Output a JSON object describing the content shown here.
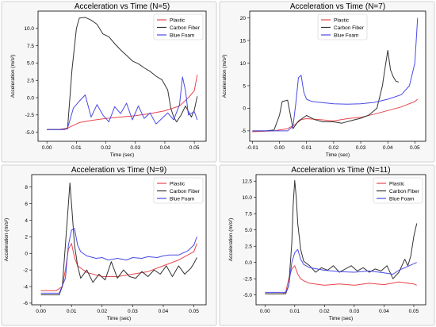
{
  "colors": {
    "plastic": "#e8464c",
    "carbon": "#333333",
    "foam": "#4a4ae6"
  },
  "chart_data": [
    {
      "type": "line",
      "title": "Acceleration vs Time (N=5)",
      "xlabel": "Time (sec)",
      "ylabel": "Acceleration (m/s²)",
      "xlim": [
        -0.003,
        0.054
      ],
      "ylim": [
        -6.3,
        12.5
      ],
      "xticks": [
        0.0,
        0.01,
        0.02,
        0.03,
        0.04,
        0.05
      ],
      "xtick_labels": [
        "0.00",
        "0.01",
        "0.02",
        "0.03",
        "0.04",
        "0.05"
      ],
      "yticks": [
        -5.0,
        -2.5,
        0.0,
        2.5,
        5.0,
        7.5,
        10.0
      ],
      "ytick_labels": [
        "-5.0",
        "-2.5",
        "0.0",
        "2.5",
        "5.0",
        "7.5",
        "10.0"
      ],
      "legend": "top-right",
      "grid": false,
      "series": [
        {
          "name": "Plastic",
          "color_key": "plastic",
          "x": [
            0,
            0.004,
            0.007,
            0.009,
            0.011,
            0.015,
            0.02,
            0.025,
            0.03,
            0.035,
            0.04,
            0.045,
            0.048,
            0.05,
            0.051
          ],
          "y": [
            -4.6,
            -4.6,
            -4.4,
            -4.0,
            -3.6,
            -3.3,
            -3.0,
            -2.8,
            -2.6,
            -2.3,
            -1.9,
            -1.2,
            0.0,
            1.0,
            3.3
          ]
        },
        {
          "name": "Carbon Fiber",
          "color_key": "carbon",
          "x": [
            0,
            0.005,
            0.007,
            0.0085,
            0.01,
            0.011,
            0.013,
            0.015,
            0.017,
            0.019,
            0.021,
            0.023,
            0.025,
            0.027,
            0.029,
            0.031,
            0.033,
            0.035,
            0.037,
            0.039,
            0.041,
            0.042,
            0.043,
            0.044,
            0.0455,
            0.047,
            0.049,
            0.05,
            0.051
          ],
          "y": [
            -4.6,
            -4.6,
            -4.5,
            4.0,
            10.0,
            11.5,
            11.6,
            11.2,
            10.6,
            9.2,
            8.8,
            7.8,
            6.9,
            6.1,
            5.3,
            4.9,
            4.3,
            3.8,
            3.1,
            2.6,
            1.1,
            -1.5,
            -2.8,
            -3.5,
            -2.5,
            -1.2,
            -2.8,
            -1.8,
            0.2
          ]
        },
        {
          "name": "Blue Foam",
          "color_key": "foam",
          "x": [
            0,
            0.006,
            0.007,
            0.008,
            0.009,
            0.011,
            0.013,
            0.015,
            0.017,
            0.019,
            0.021,
            0.023,
            0.025,
            0.027,
            0.029,
            0.031,
            0.033,
            0.035,
            0.037,
            0.039,
            0.041,
            0.043,
            0.045,
            0.046,
            0.047,
            0.048,
            0.05,
            0.051
          ],
          "y": [
            -4.6,
            -4.6,
            -4.4,
            -3.0,
            -1.5,
            -0.5,
            0.4,
            -2.8,
            -1.0,
            -2.5,
            -3.5,
            -1.3,
            -2.3,
            -0.8,
            -3.2,
            -1.2,
            -3.0,
            -2.2,
            -3.8,
            -3.0,
            -2.2,
            -3.2,
            -1.0,
            3.0,
            1.0,
            -2.5,
            -2.0,
            -3.2
          ]
        }
      ]
    },
    {
      "type": "line",
      "title": "Acceleration vs Time (N=7)",
      "xlabel": "Time (sec)",
      "ylabel": "Acceleration (m/s²)",
      "xlim": [
        -0.011,
        0.054
      ],
      "ylim": [
        -7.3,
        21.5
      ],
      "xticks": [
        -0.01,
        0.0,
        0.01,
        0.02,
        0.03,
        0.04,
        0.05
      ],
      "xtick_labels": [
        "-0.01",
        "0.00",
        "0.01",
        "0.02",
        "0.03",
        "0.04",
        "0.05"
      ],
      "yticks": [
        -5,
        0,
        5,
        10,
        15,
        20
      ],
      "ytick_labels": [
        "-5",
        "0",
        "5",
        "10",
        "15",
        "20"
      ],
      "legend": "top-center",
      "grid": false,
      "series": [
        {
          "name": "Plastic",
          "color_key": "plastic",
          "x": [
            -0.01,
            -0.002,
            0.0,
            0.003,
            0.006,
            0.008,
            0.01,
            0.015,
            0.02,
            0.025,
            0.03,
            0.035,
            0.04,
            0.045,
            0.05,
            0.051
          ],
          "y": [
            -5.2,
            -5.0,
            -4.8,
            -4.5,
            -3.5,
            -2.5,
            -2.3,
            -2.5,
            -2.8,
            -2.3,
            -2.0,
            -1.3,
            -0.5,
            0.3,
            1.5,
            2.0
          ]
        },
        {
          "name": "Carbon Fiber",
          "color_key": "carbon",
          "x": [
            -0.01,
            -0.005,
            -0.002,
            0.0,
            0.001,
            0.003,
            0.005,
            0.007,
            0.01,
            0.013,
            0.016,
            0.02,
            0.023,
            0.026,
            0.03,
            0.033,
            0.036,
            0.038,
            0.039,
            0.04,
            0.041,
            0.042,
            0.043,
            0.044
          ],
          "y": [
            -5.0,
            -5.0,
            -4.8,
            -1.5,
            1.5,
            1.8,
            -4.5,
            -2.8,
            -1.6,
            -2.5,
            -3.0,
            -3.0,
            -3.3,
            -2.8,
            -2.2,
            -1.5,
            0.0,
            5.0,
            9.0,
            12.8,
            8.5,
            7.0,
            6.0,
            5.8
          ]
        },
        {
          "name": "Blue Foam",
          "color_key": "foam",
          "x": [
            -0.01,
            0.003,
            0.005,
            0.006,
            0.007,
            0.008,
            0.009,
            0.01,
            0.012,
            0.015,
            0.02,
            0.025,
            0.03,
            0.035,
            0.04,
            0.045,
            0.048,
            0.05,
            0.051
          ],
          "y": [
            -5.0,
            -5.0,
            -4.0,
            1.0,
            6.8,
            7.3,
            3.5,
            2.0,
            1.5,
            1.3,
            1.0,
            0.9,
            1.0,
            1.3,
            2.0,
            3.0,
            5.0,
            10.0,
            20.0
          ]
        }
      ]
    },
    {
      "type": "line",
      "title": "Acceleration vs Time (N=9)",
      "xlabel": "Time (sec)",
      "ylabel": "Acceleration (m/s²)",
      "xlim": [
        -0.003,
        0.054
      ],
      "ylim": [
        -6.2,
        9.5
      ],
      "xticks": [
        0.0,
        0.01,
        0.02,
        0.03,
        0.04,
        0.05
      ],
      "xtick_labels": [
        "0.00",
        "0.01",
        "0.02",
        "0.03",
        "0.04",
        "0.05"
      ],
      "yticks": [
        -6,
        -4,
        -2,
        0,
        2,
        4,
        6,
        8
      ],
      "ytick_labels": [
        "-6",
        "-4",
        "-2",
        "0",
        "2",
        "4",
        "6",
        "8"
      ],
      "legend": "top-right",
      "grid": false,
      "series": [
        {
          "name": "Plastic",
          "color_key": "plastic",
          "x": [
            0,
            0.005,
            0.007,
            0.008,
            0.009,
            0.01,
            0.011,
            0.012,
            0.015,
            0.02,
            0.025,
            0.03,
            0.035,
            0.04,
            0.045,
            0.05,
            0.051
          ],
          "y": [
            -4.5,
            -4.5,
            -4.0,
            -2.0,
            0.5,
            1.2,
            -0.5,
            -1.5,
            -2.3,
            -2.8,
            -2.8,
            -2.5,
            -2.2,
            -1.5,
            -0.8,
            0.2,
            1.2
          ]
        },
        {
          "name": "Carbon Fiber",
          "color_key": "carbon",
          "x": [
            0,
            0.006,
            0.007,
            0.008,
            0.009,
            0.0095,
            0.01,
            0.011,
            0.012,
            0.013,
            0.015,
            0.017,
            0.019,
            0.021,
            0.023,
            0.025,
            0.027,
            0.029,
            0.031,
            0.033,
            0.035,
            0.037,
            0.039,
            0.041,
            0.043,
            0.045,
            0.047,
            0.049,
            0.05,
            0.051
          ],
          "y": [
            -5.0,
            -5.0,
            -4.0,
            1.0,
            6.0,
            8.5,
            6.0,
            1.0,
            -1.5,
            -3.0,
            -2.0,
            -3.5,
            -2.5,
            -3.2,
            -1.0,
            -3.0,
            -2.0,
            -2.8,
            -3.0,
            -2.2,
            -2.8,
            -2.0,
            -2.5,
            -1.5,
            -2.8,
            -1.5,
            -2.5,
            -1.8,
            -1.2,
            -0.5
          ]
        },
        {
          "name": "Blue Foam",
          "color_key": "foam",
          "x": [
            0,
            0.006,
            0.008,
            0.009,
            0.01,
            0.011,
            0.012,
            0.013,
            0.015,
            0.018,
            0.02,
            0.022,
            0.025,
            0.028,
            0.03,
            0.033,
            0.035,
            0.038,
            0.04,
            0.042,
            0.045,
            0.048,
            0.05,
            0.051
          ],
          "y": [
            -4.8,
            -4.8,
            -3.0,
            1.0,
            2.8,
            3.0,
            1.0,
            0.2,
            -0.3,
            -0.6,
            -0.5,
            -0.8,
            -0.6,
            -0.8,
            -0.5,
            -0.6,
            -0.4,
            -0.5,
            -0.3,
            -0.2,
            -0.2,
            0.3,
            1.0,
            2.0
          ]
        }
      ]
    },
    {
      "type": "line",
      "title": "Acceleration vs Time (N=11)",
      "xlabel": "Time (sec)",
      "ylabel": "Acceleration (m/s²)",
      "xlim": [
        -0.003,
        0.054
      ],
      "ylim": [
        -6.5,
        13.5
      ],
      "xticks": [
        0.0,
        0.01,
        0.02,
        0.03,
        0.04,
        0.05
      ],
      "xtick_labels": [
        "0.00",
        "0.01",
        "0.02",
        "0.03",
        "0.04",
        "0.05"
      ],
      "yticks": [
        -5.0,
        -2.5,
        0.0,
        2.5,
        5.0,
        7.5,
        10.0,
        12.5
      ],
      "ytick_labels": [
        "-5.0",
        "-2.5",
        "0.0",
        "2.5",
        "5.0",
        "7.5",
        "10.0",
        "12.5"
      ],
      "legend": "top-right",
      "grid": false,
      "series": [
        {
          "name": "Plastic",
          "color_key": "plastic",
          "x": [
            0,
            0.006,
            0.007,
            0.008,
            0.009,
            0.01,
            0.011,
            0.012,
            0.013,
            0.015,
            0.02,
            0.025,
            0.03,
            0.035,
            0.04,
            0.045,
            0.05,
            0.051
          ],
          "y": [
            -4.8,
            -4.8,
            -4.5,
            -2.5,
            -1.0,
            -0.5,
            -1.8,
            -2.5,
            -2.8,
            -3.2,
            -3.5,
            -3.3,
            -3.5,
            -3.2,
            -3.4,
            -3.0,
            -3.3,
            -3.5
          ]
        },
        {
          "name": "Carbon Fiber",
          "color_key": "carbon",
          "x": [
            0,
            0.007,
            0.008,
            0.009,
            0.0095,
            0.01,
            0.0105,
            0.011,
            0.012,
            0.013,
            0.015,
            0.017,
            0.019,
            0.021,
            0.023,
            0.025,
            0.027,
            0.029,
            0.031,
            0.033,
            0.035,
            0.037,
            0.039,
            0.041,
            0.043,
            0.045,
            0.047,
            0.048,
            0.049,
            0.05,
            0.051
          ],
          "y": [
            -4.8,
            -4.8,
            -3.5,
            3.0,
            9.0,
            12.6,
            10.0,
            6.0,
            2.0,
            0.2,
            -0.5,
            -1.5,
            -0.8,
            -1.2,
            -0.5,
            -1.5,
            -1.0,
            -0.5,
            -1.3,
            -0.8,
            -1.5,
            -1.0,
            -1.3,
            -0.5,
            -2.5,
            -1.5,
            0.5,
            -0.5,
            1.0,
            4.0,
            6.0
          ]
        },
        {
          "name": "Blue Foam",
          "color_key": "foam",
          "x": [
            0,
            0.007,
            0.008,
            0.009,
            0.01,
            0.011,
            0.012,
            0.013,
            0.015,
            0.02,
            0.025,
            0.03,
            0.035,
            0.04,
            0.043,
            0.045,
            0.048,
            0.05,
            0.051
          ],
          "y": [
            -4.6,
            -4.6,
            -3.5,
            0.0,
            1.5,
            2.0,
            0.5,
            -0.3,
            -0.8,
            -1.2,
            -1.4,
            -1.5,
            -1.3,
            -1.6,
            -1.8,
            -1.2,
            -0.6,
            -0.2,
            0.0
          ]
        }
      ]
    }
  ]
}
